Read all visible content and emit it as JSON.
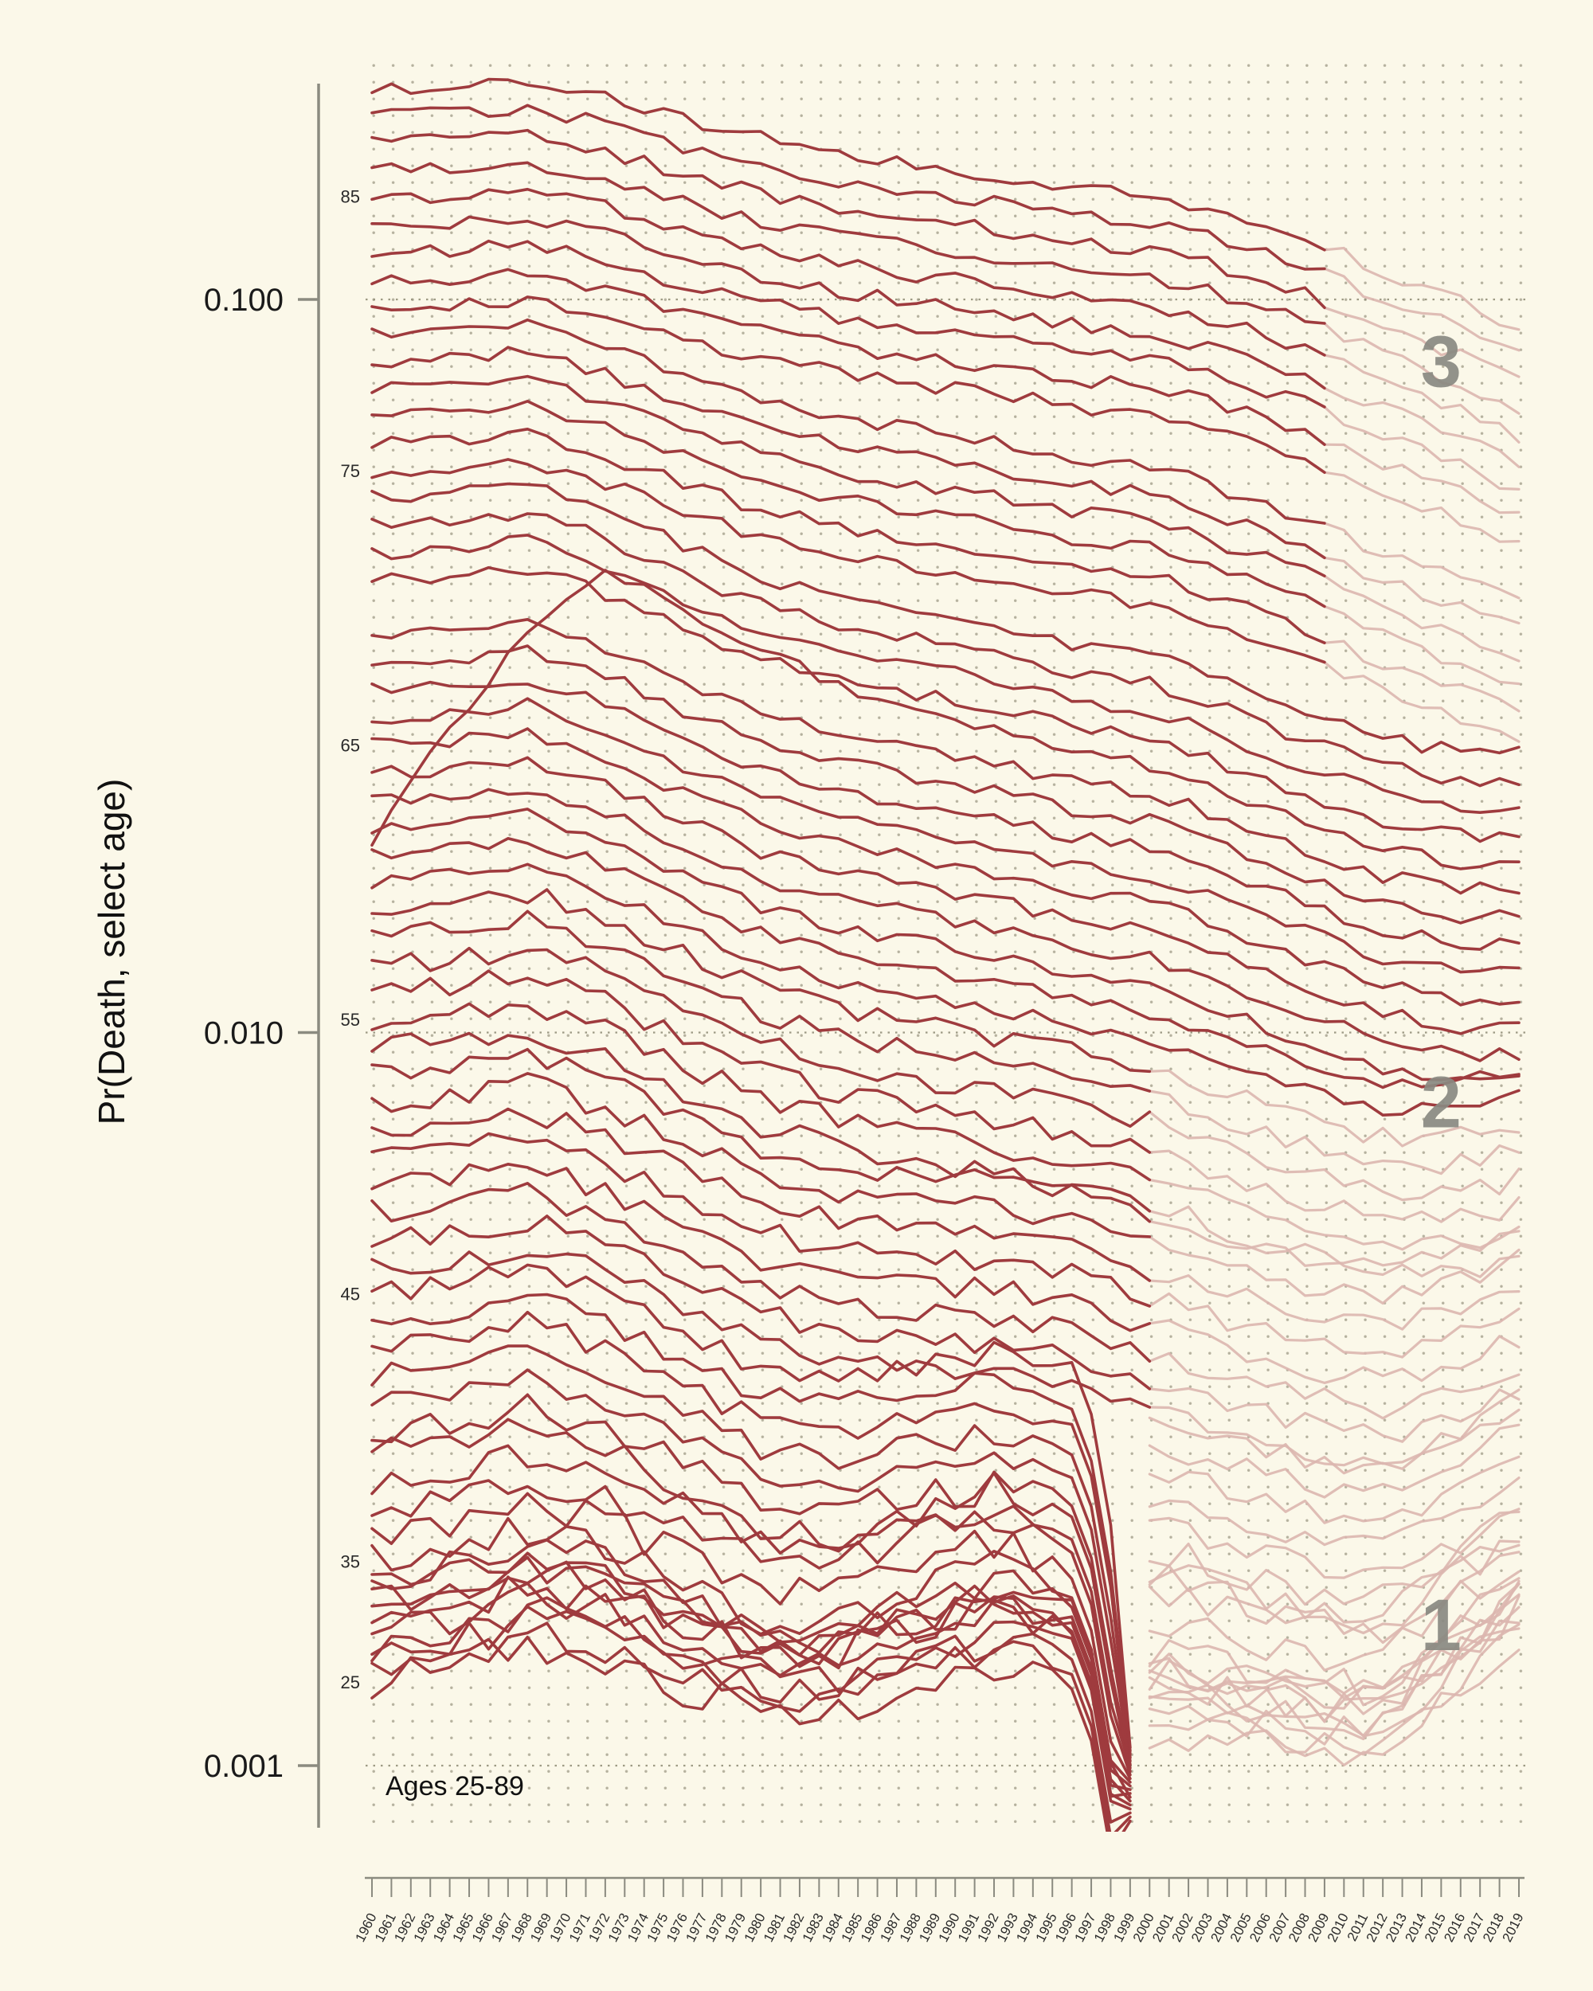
{
  "chart_data": {
    "type": "line",
    "note": "Ages 25-89",
    "y_axis": {
      "label": "Pr(Death, select age)",
      "scale": "log",
      "ticks": [
        {
          "v": 0.001,
          "label": "0.001"
        },
        {
          "v": 0.01,
          "label": "0.010"
        },
        {
          "v": 0.1,
          "label": "0.100"
        }
      ]
    },
    "x_axis": {
      "ticks": [
        1960,
        1961,
        1962,
        1963,
        1964,
        1965,
        1966,
        1967,
        1968,
        1969,
        1970,
        1971,
        1972,
        1973,
        1974,
        1975,
        1976,
        1977,
        1978,
        1979,
        1980,
        1981,
        1982,
        1983,
        1984,
        1985,
        1986,
        1987,
        1988,
        1989,
        1990,
        1991,
        1992,
        1993,
        1994,
        1995,
        1996,
        1997,
        1998,
        1999,
        2000,
        2001,
        2002,
        2003,
        2004,
        2005,
        2006,
        2007,
        2008,
        2009,
        2010,
        2011,
        2012,
        2013,
        2014,
        2015,
        2016,
        2017,
        2018,
        2019
      ]
    },
    "age_range": [
      25,
      89
    ],
    "age_markers": [
      {
        "age": "25",
        "v": 0.0013
      },
      {
        "age": "35",
        "v": 0.0019
      },
      {
        "age": "45",
        "v": 0.0044
      },
      {
        "age": "55",
        "v": 0.01042
      },
      {
        "age": "65",
        "v": 0.02467
      },
      {
        "age": "75",
        "v": 0.0584
      },
      {
        "age": "85",
        "v": 0.13826
      }
    ],
    "region_labels": [
      {
        "text": "1",
        "year": 2015,
        "v": 0.00155
      },
      {
        "text": "2",
        "year": 2015,
        "v": 0.008
      },
      {
        "text": "3",
        "year": 2015,
        "v": 0.082
      }
    ],
    "colors": {
      "background": "#FBF8E9",
      "line_dark": "#9F3B3E",
      "line_faded": "#DCB6AF",
      "grid_dot": "#B5B19E",
      "gridline": "#99957F",
      "axis": "#8B8B80",
      "region_label": "#8A8A82",
      "text": "#1A1A1A"
    },
    "anchor_years": [
      1960,
      1964,
      1968,
      1972,
      1976,
      1980,
      1984,
      1988,
      1992,
      1996,
      2000,
      2004,
      2008,
      2012,
      2016,
      2019
    ],
    "base_q_age25_to_89": [
      0.0013,
      0.00135,
      0.0014,
      0.00146,
      0.00151,
      0.00157,
      0.00163,
      0.00169,
      0.00176,
      0.00183,
      0.0019,
      0.00207,
      0.00225,
      0.00244,
      0.00266,
      0.00289,
      0.00314,
      0.00342,
      0.00372,
      0.00404,
      0.0044,
      0.0048,
      0.00523,
      0.0057,
      0.00621,
      0.00677,
      0.00738,
      0.00804,
      0.00877,
      0.00956,
      0.01042,
      0.01135,
      0.01238,
      0.01349,
      0.01471,
      0.01603,
      0.01747,
      0.01905,
      0.02076,
      0.02263,
      0.02467,
      0.02689,
      0.02931,
      0.03195,
      0.03482,
      0.03796,
      0.04137,
      0.0451,
      0.04915,
      0.05358,
      0.0584,
      0.06366,
      0.06939,
      0.07563,
      0.08244,
      0.08986,
      0.09795,
      0.10676,
      0.11637,
      0.12684,
      0.13826,
      0.1507,
      0.16426,
      0.17905,
      0.19516
    ],
    "trend_bands": [
      {
        "ages": [
          25,
          31
        ],
        "mult": [
          1.0,
          1.05,
          1.12,
          1.08,
          0.98,
          0.92,
          0.9,
          0.98,
          1.06,
          1.0,
          0.85,
          0.83,
          0.8,
          0.78,
          0.98,
          1.12
        ]
      },
      {
        "ages": [
          32,
          38
        ],
        "mult": [
          1.0,
          1.04,
          1.1,
          1.04,
          0.93,
          0.84,
          0.84,
          0.92,
          0.98,
          0.9,
          0.76,
          0.72,
          0.68,
          0.68,
          0.82,
          0.92
        ]
      },
      {
        "ages": [
          39,
          45
        ],
        "mult": [
          1.0,
          1.03,
          1.08,
          1.0,
          0.89,
          0.79,
          0.77,
          0.8,
          0.83,
          0.78,
          0.68,
          0.64,
          0.6,
          0.58,
          0.64,
          0.72
        ]
      },
      {
        "ages": [
          46,
          53
        ],
        "mult": [
          1.0,
          1.02,
          1.06,
          0.98,
          0.88,
          0.79,
          0.75,
          0.73,
          0.72,
          0.69,
          0.64,
          0.6,
          0.56,
          0.54,
          0.57,
          0.62
        ]
      },
      {
        "ages": [
          54,
          61
        ],
        "mult": [
          1.0,
          1.02,
          1.05,
          0.97,
          0.87,
          0.78,
          0.73,
          0.7,
          0.67,
          0.64,
          0.61,
          0.56,
          0.52,
          0.49,
          0.49,
          0.51
        ]
      },
      {
        "ages": [
          62,
          74
        ],
        "mult": [
          1.0,
          1.01,
          1.04,
          0.96,
          0.86,
          0.78,
          0.73,
          0.7,
          0.67,
          0.63,
          0.61,
          0.56,
          0.51,
          0.47,
          0.45,
          0.45
        ]
      },
      {
        "ages": [
          75,
          80
        ],
        "mult": [
          1.0,
          1.01,
          1.03,
          0.96,
          0.88,
          0.81,
          0.77,
          0.74,
          0.71,
          0.68,
          0.66,
          0.61,
          0.56,
          0.5,
          0.46,
          0.43
        ]
      },
      {
        "ages": [
          81,
          89
        ],
        "mult": [
          1.0,
          1.0,
          1.02,
          0.97,
          0.9,
          0.85,
          0.81,
          0.78,
          0.76,
          0.73,
          0.71,
          0.67,
          0.62,
          0.56,
          0.51,
          0.47
        ]
      }
    ],
    "age_overrides": {
      "70": [
        0.48,
        0.68,
        0.92,
        1.12,
        1.0,
        0.88,
        0.78,
        0.72,
        0.68,
        0.64,
        0.61,
        0.56,
        0.51,
        0.47,
        0.45,
        0.45
      ]
    },
    "segments": [
      {
        "ages": [
          25,
          45
        ],
        "dark": [
          1960,
          1999
        ],
        "faded": [
          2000,
          2019
        ],
        "dark_end_dive": {
          "years": [
            1997,
            1998,
            1999
          ],
          "rel_to_1996": [
            0.85,
            0.6,
            null
          ],
          "final_floor": 0.00084,
          "final_age_step": 0.013
        }
      },
      {
        "ages": [
          46,
          59
        ],
        "dark": [
          1960,
          2000
        ],
        "faded": [
          2000,
          2019
        ]
      },
      {
        "ages": [
          60,
          74
        ],
        "dark": [
          1960,
          2019
        ]
      },
      {
        "ages": [
          75,
          89
        ],
        "dark": [
          1960,
          2009
        ],
        "faded": [
          2009,
          2019
        ]
      }
    ],
    "jitter_amp": {
      "age_max_40": 0.055,
      "age_max_59": 0.035,
      "older": 0.022
    }
  }
}
